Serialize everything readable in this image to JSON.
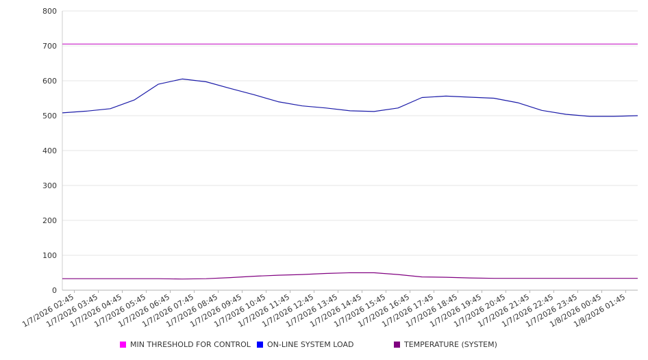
{
  "chart_data": {
    "type": "line",
    "ylim": [
      0,
      800
    ],
    "y_ticks": [
      "0",
      "100",
      "200",
      "300",
      "400",
      "500",
      "600",
      "700",
      "800"
    ],
    "x_ticks": [
      "1/7/2026 02:45",
      "1/7/2026 03:45",
      "1/7/2026 04:45",
      "1/7/2026 05:45",
      "1/7/2026 06:45",
      "1/7/2026 07:45",
      "1/7/2026 08:45",
      "1/7/2026 09:45",
      "1/7/2026 10:45",
      "1/7/2026 11:45",
      "1/7/2026 12:45",
      "1/7/2026 13:45",
      "1/7/2026 14:45",
      "1/7/2026 15:45",
      "1/7/2026 16:45",
      "1/7/2026 17:45",
      "1/7/2026 18:45",
      "1/7/2026 19:45",
      "1/7/2026 20:45",
      "1/7/2026 21:45",
      "1/7/2026 22:45",
      "1/7/2026 23:45",
      "1/8/2026 00:45",
      "1/8/2026 01:45"
    ],
    "grid": true,
    "legend_position": "bottom",
    "series": [
      {
        "name": "MIN THRESHOLD FOR CONTROL",
        "color": "#ff00ff",
        "line_color": "#cc33cc",
        "values": [
          705,
          705,
          705,
          705,
          705,
          705,
          705,
          705,
          705,
          705,
          705,
          705,
          705,
          705,
          705,
          705,
          705,
          705,
          705,
          705,
          705,
          705,
          705,
          705,
          705
        ]
      },
      {
        "name": "ON-LINE SYSTEM LOAD",
        "color": "#0000ff",
        "line_color": "#1a1aa8",
        "values": [
          508,
          513,
          520,
          545,
          590,
          605,
          597,
          578,
          560,
          540,
          528,
          522,
          514,
          512,
          522,
          552,
          556,
          553,
          550,
          537,
          515,
          504,
          498,
          498,
          500
        ]
      },
      {
        "name": "TEMPERATURE (SYSTEM)",
        "color": "#800080",
        "line_color": "#800080",
        "values": [
          33,
          33,
          33,
          33,
          33,
          32,
          33,
          36,
          40,
          43,
          45,
          48,
          50,
          50,
          45,
          38,
          37,
          35,
          34,
          34,
          34,
          34,
          34,
          34,
          34
        ]
      }
    ]
  }
}
